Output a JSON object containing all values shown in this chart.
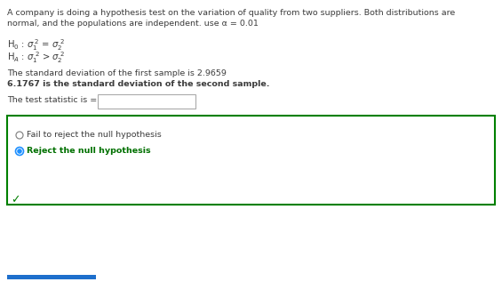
{
  "bg_color": "#ffffff",
  "title_line1": "A company is doing a hypothesis test on the variation of quality from two suppliers. Both distributions are",
  "title_line2": "normal, and the populations are independent. use α = 0.01",
  "sd_line1": "The standard deviation of the first sample is 2.9659",
  "sd_line2": "6.1767 is the standard deviation of the second sample.",
  "test_stat_label": "The test statistic is =",
  "option1": "Fail to reject the null hypothesis",
  "option2": "Reject the null hypothesis",
  "box_color": "#008000",
  "radio_selected_color": "#1e90ff",
  "text_color": "#3c3c3c",
  "green_text_color": "#007000",
  "checkmark_color": "#008000",
  "input_box_edge": "#aaaaaa",
  "blue_bar_color": "#1e6fcc"
}
